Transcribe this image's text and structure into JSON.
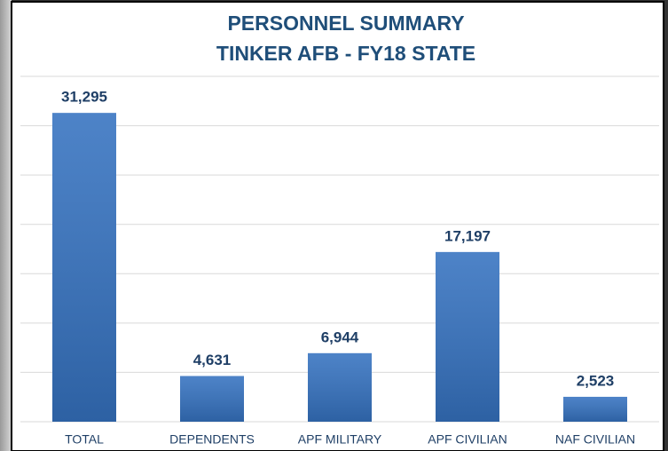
{
  "chart_data": {
    "type": "bar",
    "title": [
      "PERSONNEL SUMMARY",
      "TINKER AFB - FY18 STATE"
    ],
    "categories": [
      "TOTAL",
      "DEPENDENTS",
      "APF MILITARY",
      "APF CIVILIAN",
      "NAF CIVILIAN"
    ],
    "values": [
      31295,
      4631,
      6944,
      17197,
      2523
    ],
    "value_labels": [
      "31,295",
      "4,631",
      "6,944",
      "17,197",
      "2,523"
    ],
    "color": "#3572c0",
    "ylim": [
      0,
      35000
    ],
    "yticks": [
      0,
      5000,
      10000,
      15000,
      20000,
      25000,
      30000,
      35000
    ],
    "grid": true
  }
}
